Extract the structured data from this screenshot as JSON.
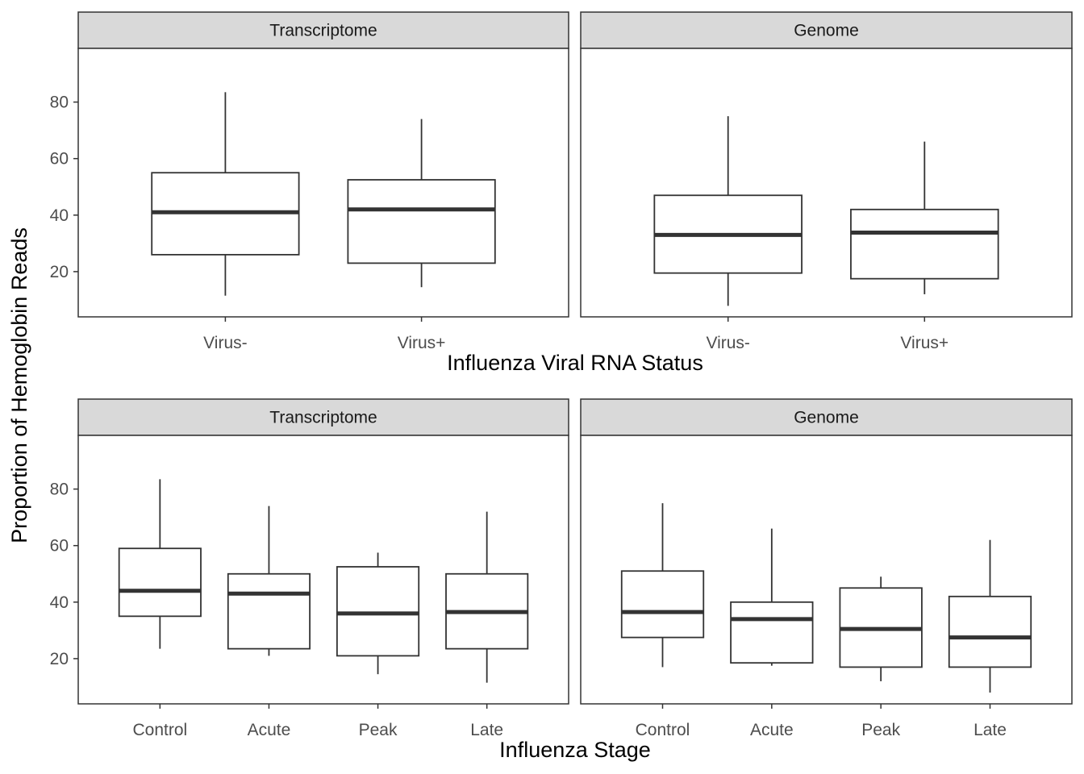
{
  "colors": {
    "strip_fill": "#d9d9d9",
    "border": "#333333",
    "tick_text": "#4d4d4d"
  },
  "y_axis_title": "Proportion of Hemoglobin Reads",
  "chart_data": [
    {
      "type": "boxplot",
      "xlabel": "Influenza Viral RNA Status",
      "ylabel": "Proportion of Hemoglobin Reads",
      "ylim": [
        4,
        99
      ],
      "yticks": [
        20,
        40,
        60,
        80
      ],
      "grid": false,
      "facets": [
        {
          "title": "Transcriptome",
          "categories": [
            "Virus-",
            "Virus+"
          ],
          "boxes": [
            {
              "min": 11.5,
              "q1": 26,
              "median": 41,
              "q3": 55,
              "max": 83.5
            },
            {
              "min": 14.5,
              "q1": 23,
              "median": 42,
              "q3": 52.5,
              "max": 74
            }
          ]
        },
        {
          "title": "Genome",
          "categories": [
            "Virus-",
            "Virus+"
          ],
          "boxes": [
            {
              "min": 7.9,
              "q1": 19.5,
              "median": 33,
              "q3": 47,
              "max": 75
            },
            {
              "min": 12,
              "q1": 17.5,
              "median": 33.8,
              "q3": 42,
              "max": 66
            }
          ]
        }
      ]
    },
    {
      "type": "boxplot",
      "xlabel": "Influenza Stage",
      "ylabel": "Proportion of Hemoglobin Reads",
      "ylim": [
        4,
        99
      ],
      "yticks": [
        20,
        40,
        60,
        80
      ],
      "grid": false,
      "facets": [
        {
          "title": "Transcriptome",
          "categories": [
            "Control",
            "Acute",
            "Peak",
            "Late"
          ],
          "boxes": [
            {
              "min": 23.5,
              "q1": 35,
              "median": 44,
              "q3": 59,
              "max": 83.5
            },
            {
              "min": 21,
              "q1": 23.5,
              "median": 43,
              "q3": 50,
              "max": 74
            },
            {
              "min": 14.5,
              "q1": 21,
              "median": 36,
              "q3": 52.5,
              "max": 57.5
            },
            {
              "min": 11.5,
              "q1": 23.5,
              "median": 36.5,
              "q3": 50,
              "max": 72
            }
          ]
        },
        {
          "title": "Genome",
          "categories": [
            "Control",
            "Acute",
            "Peak",
            "Late"
          ],
          "boxes": [
            {
              "min": 17,
              "q1": 27.5,
              "median": 36.5,
              "q3": 51,
              "max": 75
            },
            {
              "min": 17.5,
              "q1": 18.5,
              "median": 34,
              "q3": 40,
              "max": 66
            },
            {
              "min": 12,
              "q1": 17,
              "median": 30.5,
              "q3": 45,
              "max": 49
            },
            {
              "min": 8,
              "q1": 17,
              "median": 27.5,
              "q3": 42,
              "max": 62
            }
          ]
        }
      ]
    }
  ]
}
